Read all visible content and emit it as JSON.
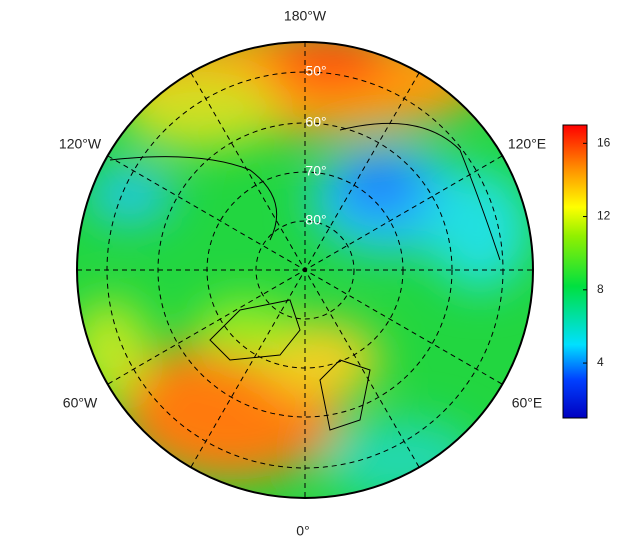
{
  "map": {
    "longitude_labels": [
      "180°W",
      "120°W",
      "120°E",
      "60°W",
      "60°E",
      "0°"
    ],
    "latitude_labels": [
      "50°",
      "60°",
      "70°",
      "80°"
    ]
  },
  "colorbar": {
    "lim": [
      1,
      17
    ],
    "ticks": [
      4,
      8,
      12,
      16
    ]
  }
}
